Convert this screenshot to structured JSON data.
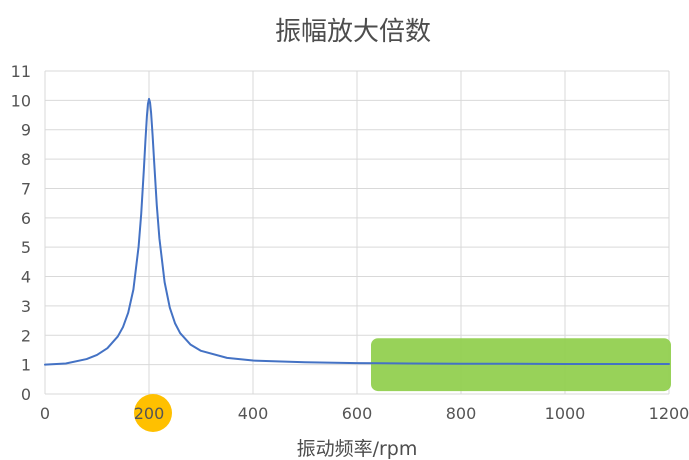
{
  "chart_data": {
    "type": "line",
    "title": "振幅放大倍数",
    "xlabel": "振动频率/rpm",
    "ylabel": "",
    "xlim": [
      0,
      1200
    ],
    "ylim": [
      0,
      11
    ],
    "xticks": [
      0,
      200,
      400,
      600,
      800,
      1000,
      1200
    ],
    "yticks": [
      0,
      1,
      2,
      3,
      4,
      5,
      6,
      7,
      8,
      9,
      10,
      11
    ],
    "grid": true,
    "legend": "none",
    "series": [
      {
        "color": "#4472c4",
        "x": [
          0,
          40,
          80,
          100,
          120,
          140,
          150,
          160,
          170,
          180,
          185,
          190,
          193,
          196,
          198,
          200,
          202,
          204,
          207,
          210,
          215,
          220,
          230,
          240,
          250,
          260,
          280,
          300,
          350,
          400,
          500,
          600,
          700,
          800,
          900,
          1000,
          1100,
          1200
        ],
        "y": [
          1.0,
          1.04,
          1.19,
          1.33,
          1.56,
          1.96,
          2.28,
          2.77,
          3.56,
          5.02,
          6.13,
          7.61,
          8.59,
          9.47,
          9.88,
          10.05,
          9.93,
          9.58,
          8.79,
          7.88,
          6.42,
          5.3,
          3.81,
          2.94,
          2.41,
          2.07,
          1.68,
          1.47,
          1.23,
          1.14,
          1.08,
          1.05,
          1.04,
          1.03,
          1.03,
          1.02,
          1.02,
          1.02
        ]
      }
    ],
    "highlights": [
      {
        "kind": "x-tick",
        "value": 200,
        "color": "#ffc000"
      },
      {
        "kind": "range",
        "x": [
          600,
          1200
        ],
        "y": [
          0.1,
          1.9
        ],
        "color": "#92d050"
      }
    ]
  }
}
